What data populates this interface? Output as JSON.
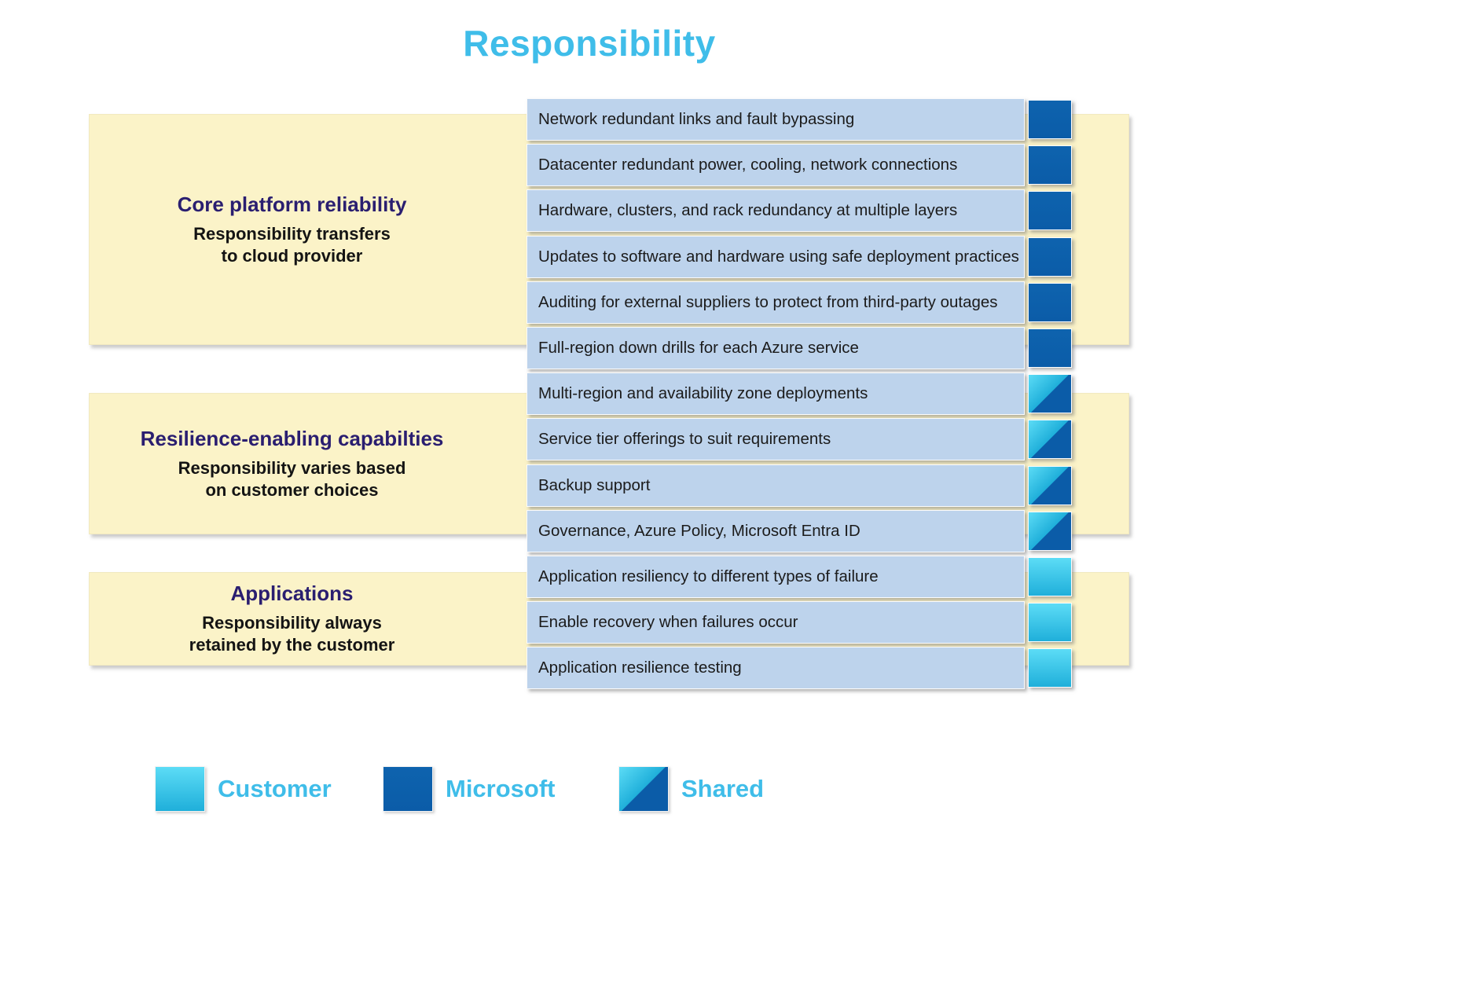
{
  "title": "Responsibility",
  "sections": [
    {
      "title": "Core platform reliability",
      "subtitle1": "Responsibility transfers",
      "subtitle2": "to cloud provider"
    },
    {
      "title": "Resilience-enabling capabilties",
      "subtitle1": "Responsibility varies based",
      "subtitle2": "on customer choices"
    },
    {
      "title": "Applications",
      "subtitle1": "Responsibility always",
      "subtitle2": "retained by the customer"
    }
  ],
  "rows": [
    {
      "label": "Network redundant links and fault bypassing",
      "owner": "microsoft"
    },
    {
      "label": "Datacenter redundant power, cooling, network connections",
      "owner": "microsoft"
    },
    {
      "label": "Hardware, clusters, and rack redundancy at multiple layers",
      "owner": "microsoft"
    },
    {
      "label": "Updates to software and hardware using safe deployment practices",
      "owner": "microsoft"
    },
    {
      "label": "Auditing for external suppliers to protect from third-party outages",
      "owner": "microsoft"
    },
    {
      "label": "Full-region down drills for each Azure service",
      "owner": "microsoft"
    },
    {
      "label": "Multi-region and availability zone deployments",
      "owner": "shared"
    },
    {
      "label": "Service tier offerings to suit requirements",
      "owner": "shared"
    },
    {
      "label": "Backup support",
      "owner": "shared"
    },
    {
      "label": "Governance, Azure Policy, Microsoft Entra ID",
      "owner": "shared"
    },
    {
      "label": "Application resiliency to different types of failure",
      "owner": "customer"
    },
    {
      "label": "Enable recovery when failures occur",
      "owner": "customer"
    },
    {
      "label": "Application resilience testing",
      "owner": "customer"
    }
  ],
  "legend": [
    {
      "label": "Customer",
      "type": "customer"
    },
    {
      "label": "Microsoft",
      "type": "microsoft"
    },
    {
      "label": "Shared",
      "type": "shared"
    }
  ],
  "colors": {
    "title_color": "#3FBDE9",
    "heading_color": "#2A1E70",
    "section_bg": "#FBF3C8",
    "row_bg": "#BDD3EC",
    "microsoft_color": "#0B5CA8",
    "customer_light": "#5CDCF6",
    "customer_dark": "#1FAFDA"
  }
}
